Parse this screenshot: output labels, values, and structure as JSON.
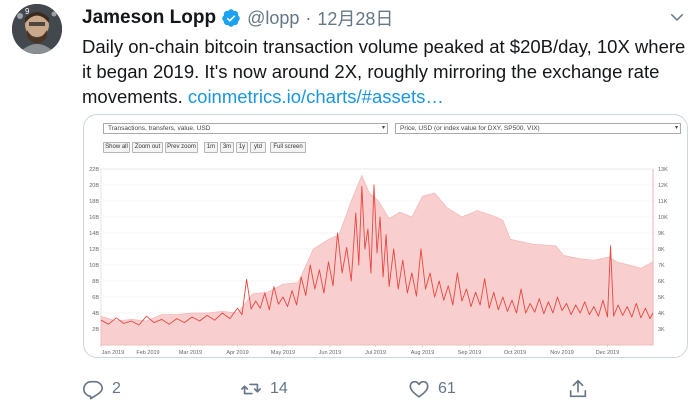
{
  "tweet": {
    "display_name": "Jameson Lopp",
    "handle": "@lopp",
    "separator": "·",
    "date": "12月28日",
    "avatar_badge": "9",
    "text_plain": "Daily on-chain bitcoin transaction volume peaked at $20B/day, 10X where it began 2019. It's now around 2X, roughly mirroring the exchange rate movements. ",
    "link_text": "coinmetrics.io/charts/#assets…"
  },
  "icons": {
    "verified": "verified-badge-icon",
    "more": "chevron-down-icon",
    "reply": "reply-icon",
    "retweet": "retweet-icon",
    "like": "heart-icon",
    "share": "share-icon"
  },
  "colors": {
    "link": "#1b95e0",
    "verified": "#1da1f2",
    "secondary_text": "#657786",
    "chart_area": "#f8c9c9",
    "chart_line": "#e8473f"
  },
  "media": {
    "left_select": "Transactions, transfers, value, USD",
    "right_select": "Price, USD (or index value for DXY, SP500, VIX)",
    "buttons": [
      "Show all",
      "Zoom out",
      "Prev zoom",
      "1m",
      "3m",
      "1y",
      "ytd",
      "Full screen"
    ]
  },
  "chart_data": {
    "type": "area",
    "title": "",
    "xlabel": "",
    "ylabel": "",
    "x": [
      "Jan 2019",
      "Feb 2019",
      "Mar 2019",
      "Apr 2019",
      "May 2019",
      "Jun 2019",
      "Jul 2019",
      "Aug 2019",
      "Sep 2019",
      "Oct 2019",
      "Nov 2019",
      "Dec 2019"
    ],
    "y_left_ticks": [
      "2B",
      "4B",
      "6B",
      "8B",
      "10B",
      "12B",
      "14B",
      "16B",
      "18B",
      "20B",
      "22B"
    ],
    "y_right_ticks": [
      "3K",
      "4K",
      "5K",
      "6K",
      "7K",
      "8K",
      "9K",
      "10K",
      "11K",
      "12K",
      "13K"
    ],
    "ylim_left": [
      0,
      22
    ],
    "ylim_right": [
      2,
      13
    ],
    "series": [
      {
        "name": "",
        "axis": "right",
        "style": "area",
        "points": [
          [
            0,
            3.8
          ],
          [
            10,
            3.5
          ],
          [
            20,
            3.6
          ],
          [
            30,
            3.5
          ],
          [
            40,
            3.9
          ],
          [
            50,
            3.9
          ],
          [
            60,
            4.0
          ],
          [
            70,
            4.0
          ],
          [
            80,
            4.1
          ],
          [
            90,
            4.0
          ],
          [
            100,
            5.2
          ],
          [
            110,
            5.3
          ],
          [
            120,
            5.8
          ],
          [
            130,
            5.9
          ],
          [
            140,
            8.0
          ],
          [
            150,
            8.6
          ],
          [
            157,
            8.9
          ],
          [
            165,
            11.0
          ],
          [
            172,
            12.6
          ],
          [
            177,
            11.5
          ],
          [
            183,
            11.0
          ],
          [
            190,
            9.9
          ],
          [
            197,
            10.3
          ],
          [
            205,
            10.0
          ],
          [
            212,
            11.3
          ],
          [
            220,
            11.5
          ],
          [
            228,
            10.6
          ],
          [
            238,
            10.0
          ],
          [
            248,
            10.4
          ],
          [
            258,
            10.1
          ],
          [
            265,
            9.8
          ],
          [
            270,
            8.6
          ],
          [
            285,
            8.3
          ],
          [
            300,
            8.2
          ],
          [
            305,
            7.6
          ],
          [
            315,
            7.4
          ],
          [
            325,
            7.3
          ],
          [
            335,
            7.5
          ],
          [
            340,
            7.2
          ],
          [
            348,
            7.0
          ],
          [
            356,
            6.8
          ],
          [
            364,
            7.2
          ]
        ]
      },
      {
        "name": "",
        "axis": "left",
        "style": "line",
        "points": [
          [
            0,
            3.1
          ],
          [
            5,
            2.6
          ],
          [
            10,
            3.4
          ],
          [
            15,
            2.7
          ],
          [
            20,
            3.0
          ],
          [
            25,
            2.5
          ],
          [
            30,
            3.6
          ],
          [
            35,
            2.8
          ],
          [
            40,
            3.2
          ],
          [
            45,
            2.6
          ],
          [
            50,
            3.3
          ],
          [
            55,
            2.8
          ],
          [
            60,
            3.5
          ],
          [
            65,
            3.0
          ],
          [
            70,
            3.7
          ],
          [
            75,
            3.1
          ],
          [
            80,
            4.0
          ],
          [
            85,
            3.3
          ],
          [
            90,
            4.6
          ],
          [
            93,
            3.8
          ],
          [
            96,
            8.2
          ],
          [
            99,
            4.5
          ],
          [
            102,
            5.5
          ],
          [
            105,
            4.6
          ],
          [
            108,
            6.5
          ],
          [
            111,
            4.4
          ],
          [
            114,
            7.3
          ],
          [
            117,
            5.1
          ],
          [
            120,
            6.0
          ],
          [
            123,
            4.8
          ],
          [
            126,
            6.8
          ],
          [
            129,
            5.0
          ],
          [
            132,
            8.5
          ],
          [
            135,
            6.2
          ],
          [
            138,
            10.0
          ],
          [
            141,
            7.0
          ],
          [
            144,
            9.4
          ],
          [
            147,
            6.5
          ],
          [
            150,
            10.4
          ],
          [
            153,
            7.4
          ],
          [
            156,
            14.0
          ],
          [
            159,
            9.0
          ],
          [
            162,
            12.2
          ],
          [
            165,
            8.0
          ],
          [
            168,
            16.5
          ],
          [
            170,
            10.0
          ],
          [
            172,
            19.8
          ],
          [
            174,
            12.0
          ],
          [
            176,
            14.5
          ],
          [
            178,
            9.0
          ],
          [
            180,
            20.0
          ],
          [
            182,
            11.5
          ],
          [
            184,
            16.0
          ],
          [
            186,
            8.5
          ],
          [
            188,
            13.8
          ],
          [
            190,
            7.3
          ],
          [
            193,
            12.0
          ],
          [
            196,
            7.0
          ],
          [
            199,
            10.6
          ],
          [
            202,
            6.5
          ],
          [
            205,
            9.0
          ],
          [
            208,
            6.1
          ],
          [
            211,
            12.0
          ],
          [
            214,
            7.0
          ],
          [
            217,
            9.0
          ],
          [
            220,
            6.0
          ],
          [
            223,
            8.0
          ],
          [
            226,
            5.6
          ],
          [
            229,
            7.4
          ],
          [
            232,
            5.0
          ],
          [
            235,
            9.0
          ],
          [
            238,
            5.5
          ],
          [
            241,
            7.0
          ],
          [
            244,
            4.8
          ],
          [
            247,
            6.6
          ],
          [
            250,
            5.0
          ],
          [
            253,
            8.3
          ],
          [
            256,
            4.6
          ],
          [
            259,
            6.6
          ],
          [
            262,
            4.4
          ],
          [
            265,
            6.0
          ],
          [
            268,
            4.2
          ],
          [
            271,
            5.6
          ],
          [
            274,
            4.0
          ],
          [
            277,
            7.0
          ],
          [
            280,
            4.0
          ],
          [
            283,
            5.2
          ],
          [
            286,
            4.1
          ],
          [
            289,
            5.8
          ],
          [
            292,
            3.9
          ],
          [
            295,
            5.4
          ],
          [
            298,
            4.0
          ],
          [
            301,
            6.0
          ],
          [
            304,
            4.3
          ],
          [
            307,
            5.2
          ],
          [
            310,
            3.8
          ],
          [
            313,
            5.0
          ],
          [
            316,
            4.0
          ],
          [
            319,
            5.4
          ],
          [
            322,
            3.8
          ],
          [
            325,
            4.8
          ],
          [
            328,
            3.6
          ],
          [
            331,
            5.6
          ],
          [
            334,
            3.5
          ],
          [
            336,
            12.4
          ],
          [
            338,
            3.6
          ],
          [
            341,
            5.0
          ],
          [
            344,
            3.7
          ],
          [
            347,
            4.8
          ],
          [
            350,
            3.5
          ],
          [
            353,
            5.2
          ],
          [
            356,
            3.4
          ],
          [
            359,
            4.6
          ],
          [
            362,
            3.3
          ],
          [
            364,
            4.0
          ]
        ]
      }
    ]
  },
  "actions": {
    "reply_count": "2",
    "retweet_count": "14",
    "like_count": "61"
  }
}
